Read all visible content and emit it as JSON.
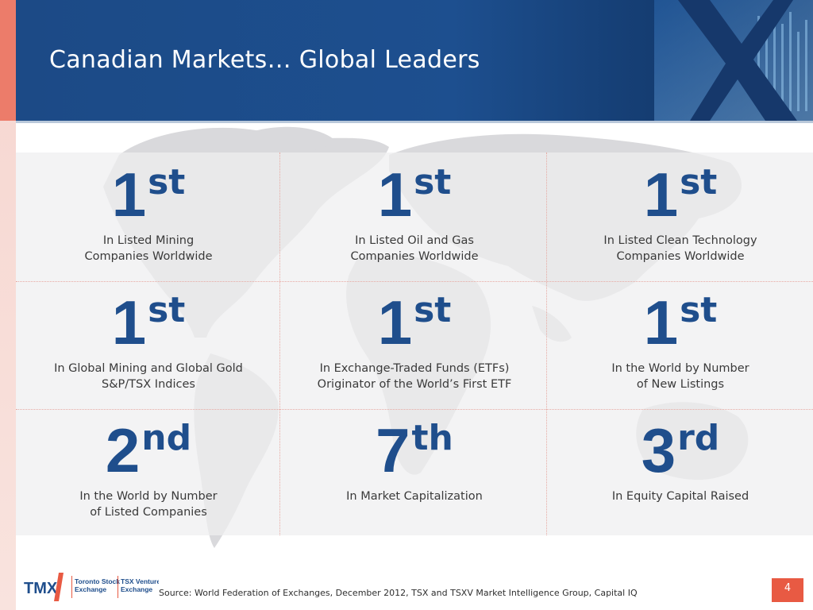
{
  "header": {
    "title": "Canadian Markets… Global Leaders"
  },
  "colors": {
    "accent_blue": "#1f4e8c",
    "header_blue": "#1d4f8f",
    "coral": "#e85a43"
  },
  "cells": [
    {
      "number": "1",
      "suffix": "st",
      "line1": "In Listed Mining",
      "line2": "Companies Worldwide"
    },
    {
      "number": "1",
      "suffix": "st",
      "line1": "In Listed Oil and Gas",
      "line2": "Companies Worldwide"
    },
    {
      "number": "1",
      "suffix": "st",
      "line1": "In Listed Clean Technology",
      "line2": "Companies Worldwide"
    },
    {
      "number": "1",
      "suffix": "st",
      "line1": "In Global Mining and Global Gold",
      "line2": "S&P/TSX Indices"
    },
    {
      "number": "1",
      "suffix": "st",
      "line1": "In Exchange-Traded Funds (ETFs)",
      "line2": "Originator of the World’s First ETF"
    },
    {
      "number": "1",
      "suffix": "st",
      "line1": "In the World by Number",
      "line2": "of New Listings"
    },
    {
      "number": "2",
      "suffix": "nd",
      "line1": "In the World by Number",
      "line2": "of Listed Companies"
    },
    {
      "number": "7",
      "suffix": "th",
      "line1": "In Market Capitalization",
      "line2": ""
    },
    {
      "number": "3",
      "suffix": "rd",
      "line1": "In Equity Capital Raised",
      "line2": ""
    }
  ],
  "footer": {
    "logo_tmx": "TMX",
    "logo_tsx": [
      "Toronto Stock",
      "Exchange"
    ],
    "logo_tsxv": [
      "TSX Venture",
      "Exchange"
    ],
    "source": "Source:  World Federation of Exchanges, December 2012, TSX and TSXV Market Intelligence Group, Capital IQ",
    "page_number": "4"
  }
}
